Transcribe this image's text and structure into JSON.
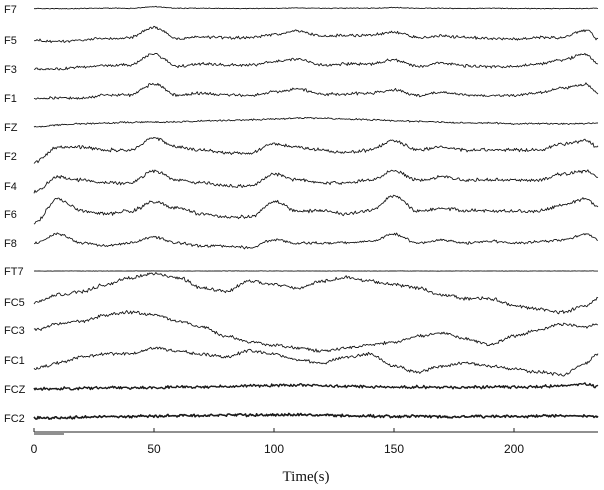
{
  "chart_data": {
    "type": "line",
    "title": "",
    "xlabel": "Time(s)",
    "ylabel": "",
    "xlim": [
      0,
      235
    ],
    "x_ticks": [
      0,
      50,
      100,
      150,
      200
    ],
    "grid": false,
    "legend": "none",
    "trace_color": "#1a1a1a",
    "x": [
      0,
      10,
      20,
      30,
      40,
      50,
      60,
      70,
      80,
      90,
      100,
      110,
      120,
      130,
      140,
      150,
      160,
      170,
      180,
      190,
      200,
      210,
      220,
      230,
      235
    ],
    "series": [
      {
        "name": "F7",
        "values": [
          0.2,
          0.1,
          0.2,
          0.3,
          0.3,
          0.9,
          0.3,
          0.3,
          0.2,
          0.2,
          0.3,
          0.4,
          0.3,
          0.3,
          0.3,
          0.6,
          0.3,
          0.3,
          0.2,
          0.3,
          0.2,
          0.2,
          0.2,
          0.2,
          0.3
        ]
      },
      {
        "name": "F5",
        "values": [
          0.0,
          -0.3,
          0.0,
          0.3,
          0.5,
          2.5,
          0.3,
          0.6,
          0.5,
          0.5,
          1.0,
          1.8,
          0.8,
          0.9,
          1.0,
          1.5,
          0.5,
          0.8,
          0.5,
          0.3,
          0.2,
          0.5,
          0.5,
          2.0,
          0.2
        ]
      },
      {
        "name": "F3",
        "values": [
          0.0,
          0.0,
          0.4,
          0.8,
          0.8,
          3.0,
          0.5,
          1.0,
          0.8,
          0.8,
          1.5,
          2.0,
          0.8,
          1.0,
          1.0,
          1.8,
          0.5,
          1.2,
          0.6,
          0.5,
          0.5,
          1.0,
          1.8,
          3.0,
          1.0
        ]
      },
      {
        "name": "F1",
        "values": [
          0.0,
          0.0,
          0.0,
          0.6,
          0.6,
          2.8,
          0.5,
          1.0,
          0.6,
          0.5,
          1.2,
          1.8,
          0.8,
          0.8,
          1.0,
          1.6,
          0.5,
          1.2,
          0.6,
          0.5,
          0.5,
          1.0,
          2.0,
          2.8,
          1.0
        ]
      },
      {
        "name": "FZ",
        "values": [
          0.0,
          0.5,
          0.8,
          1.0,
          1.2,
          1.2,
          1.3,
          1.5,
          1.6,
          1.8,
          2.0,
          2.2,
          2.2,
          2.0,
          1.8,
          1.6,
          1.4,
          1.2,
          1.0,
          1.0,
          0.8,
          0.8,
          0.8,
          0.9,
          1.0
        ]
      },
      {
        "name": "F2",
        "values": [
          -1.0,
          1.5,
          1.5,
          1.0,
          1.0,
          3.0,
          1.5,
          1.0,
          0.5,
          0.5,
          2.0,
          1.5,
          1.0,
          0.5,
          1.0,
          2.5,
          1.0,
          1.5,
          1.0,
          1.0,
          1.0,
          1.0,
          2.0,
          2.5,
          1.5
        ]
      },
      {
        "name": "F4",
        "values": [
          -1.0,
          1.5,
          1.0,
          0.5,
          0.5,
          2.5,
          1.0,
          0.5,
          0.0,
          0.0,
          2.0,
          1.0,
          0.5,
          0.5,
          1.0,
          2.5,
          1.0,
          1.5,
          1.0,
          1.0,
          1.0,
          1.0,
          2.0,
          2.5,
          1.5
        ]
      },
      {
        "name": "F6",
        "values": [
          -1.5,
          2.5,
          0.5,
          0.0,
          0.5,
          2.0,
          1.0,
          0.0,
          -0.5,
          -0.5,
          2.0,
          0.5,
          0.5,
          0.0,
          0.5,
          3.0,
          0.5,
          1.0,
          0.5,
          0.5,
          0.5,
          0.5,
          1.5,
          2.5,
          1.0
        ]
      },
      {
        "name": "F8",
        "values": [
          0.0,
          1.5,
          0.0,
          -0.5,
          0.0,
          1.0,
          0.0,
          -0.5,
          -0.5,
          -0.8,
          0.5,
          0.0,
          0.0,
          0.0,
          0.3,
          1.5,
          0.0,
          0.5,
          0.0,
          0.3,
          0.0,
          0.2,
          0.5,
          1.5,
          0.5
        ]
      },
      {
        "name": "FT7",
        "values": [
          0.0,
          0.0,
          0.0,
          0.0,
          0.0,
          0.0,
          0.0,
          0.0,
          0.0,
          0.0,
          0.0,
          0.0,
          0.0,
          0.0,
          0.0,
          0.0,
          0.0,
          0.0,
          0.0,
          0.0,
          0.0,
          0.0,
          0.0,
          0.0,
          0.0
        ]
      },
      {
        "name": "FC5",
        "values": [
          0.0,
          1.0,
          1.5,
          2.5,
          3.5,
          4.0,
          3.5,
          2.0,
          1.5,
          3.0,
          2.5,
          2.0,
          3.0,
          3.5,
          3.0,
          2.5,
          2.0,
          1.0,
          0.5,
          0.5,
          -0.5,
          -1.0,
          -1.5,
          -0.5,
          0.5
        ]
      },
      {
        "name": "FC3",
        "values": [
          0.0,
          1.0,
          1.5,
          2.5,
          3.0,
          2.5,
          1.5,
          0.5,
          -1.0,
          -2.0,
          -2.5,
          -3.0,
          -3.5,
          -3.0,
          -2.5,
          -2.0,
          -1.0,
          -0.5,
          -1.5,
          -2.5,
          -1.0,
          0.0,
          1.0,
          0.5,
          1.0
        ]
      },
      {
        "name": "FC1",
        "values": [
          -1.5,
          -0.5,
          0.5,
          1.0,
          1.0,
          2.0,
          1.5,
          1.0,
          0.5,
          1.5,
          1.0,
          0.0,
          -0.5,
          0.5,
          1.0,
          -1.0,
          -2.0,
          -1.0,
          -0.5,
          -1.0,
          -1.5,
          -2.0,
          -2.5,
          -0.5,
          1.0
        ]
      },
      {
        "name": "FCZ",
        "values": [
          0.0,
          0.1,
          0.2,
          0.3,
          0.3,
          0.4,
          0.5,
          0.5,
          0.6,
          0.8,
          0.9,
          1.0,
          0.8,
          0.7,
          0.6,
          0.5,
          0.5,
          0.4,
          0.4,
          0.5,
          0.5,
          0.6,
          0.8,
          1.2,
          0.6
        ]
      },
      {
        "name": "FC2",
        "values": [
          0.0,
          0.0,
          0.2,
          0.3,
          0.3,
          0.5,
          0.6,
          0.6,
          0.7,
          0.7,
          0.8,
          0.8,
          0.7,
          0.6,
          0.5,
          0.4,
          0.4,
          0.3,
          0.3,
          0.4,
          0.4,
          0.5,
          0.5,
          0.5,
          0.4
        ]
      }
    ]
  }
}
